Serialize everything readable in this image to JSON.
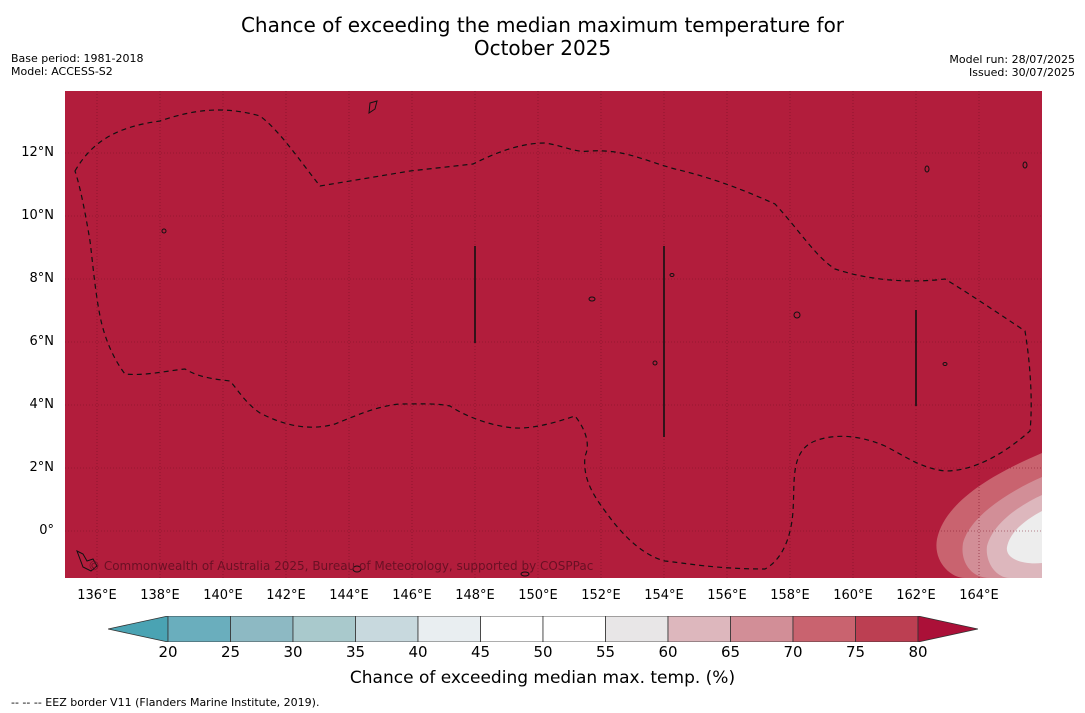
{
  "title_line1": "Chance of exceeding the median maximum temperature for",
  "title_line2": "October 2025",
  "meta_left": {
    "base_period": "Base period: 1981-2018",
    "model": "Model: ACCESS-S2"
  },
  "meta_right": {
    "model_run": "Model run: 28/07/2025",
    "issued": "Issued: 30/07/2025"
  },
  "map": {
    "background_color": "#b21d3c",
    "lat_labels": [
      "12°N",
      "10°N",
      "8°N",
      "6°N",
      "4°N",
      "2°N",
      "0°"
    ],
    "lon_labels": [
      "136°E",
      "138°E",
      "140°E",
      "142°E",
      "144°E",
      "146°E",
      "148°E",
      "150°E",
      "152°E",
      "154°E",
      "156°E",
      "158°E",
      "160°E",
      "162°E",
      "164°E"
    ],
    "copyright": "© Commonwealth of Australia 2025, Bureau of Meteorology, supported by COSPPac"
  },
  "colorbar": {
    "ticks": [
      "20",
      "25",
      "30",
      "35",
      "40",
      "45",
      "50",
      "55",
      "60",
      "65",
      "70",
      "75",
      "80"
    ],
    "colors": [
      "#4aa3b3",
      "#6aaebd",
      "#8db9c3",
      "#a9c9cc",
      "#c8d9de",
      "#e9eef1",
      "#ffffff",
      "#ffffff",
      "#e8e6e7",
      "#ddb7bd",
      "#d28e97",
      "#c9636f",
      "#bc3f52",
      "#ab1038"
    ],
    "label": "Chance of exceeding median max. temp. (%)"
  },
  "footnote": "--  --  -- EEZ border V11 (Flanders Marine Institute, 2019)."
}
